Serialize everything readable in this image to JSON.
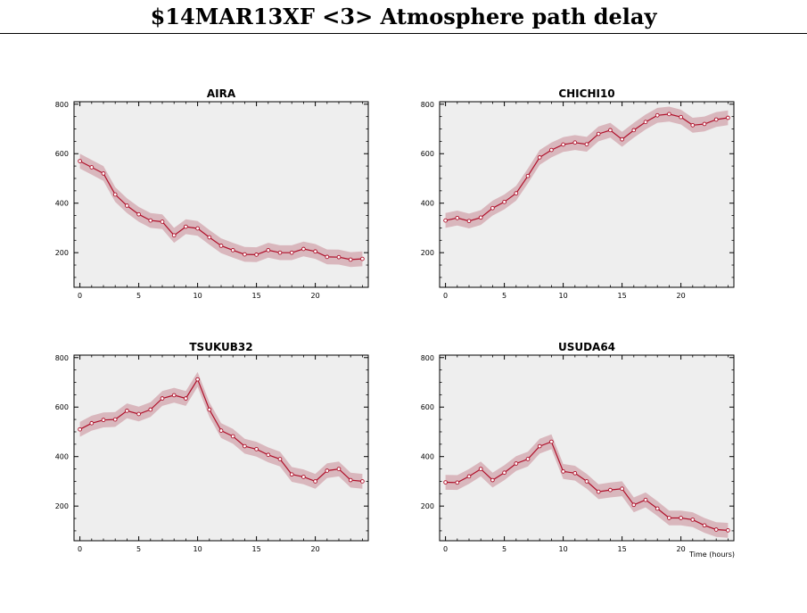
{
  "title": "$14MAR13XF <3>  Atmosphere path delay",
  "xlabel": "Time (hours)",
  "chart_data": [
    {
      "type": "line",
      "title": "AIRA",
      "x": [
        0,
        1,
        2,
        3,
        4,
        5,
        6,
        7,
        8,
        9,
        10,
        11,
        12,
        13,
        14,
        15,
        16,
        17,
        18,
        19,
        20,
        21,
        22,
        23,
        24
      ],
      "values": [
        570,
        545,
        520,
        435,
        390,
        355,
        330,
        325,
        270,
        305,
        298,
        262,
        228,
        210,
        193,
        192,
        210,
        200,
        200,
        215,
        205,
        183,
        182,
        172,
        175
      ],
      "xlim": [
        -0.5,
        24.5
      ],
      "ylim": [
        60,
        810
      ],
      "xticks": [
        0,
        5,
        10,
        15,
        20
      ],
      "yticks": [
        200,
        400,
        600,
        800
      ],
      "band": 30,
      "grid": false
    },
    {
      "type": "line",
      "title": "CHICHI10",
      "x": [
        0,
        1,
        2,
        3,
        4,
        5,
        6,
        7,
        8,
        9,
        10,
        11,
        12,
        13,
        14,
        15,
        16,
        17,
        18,
        19,
        20,
        21,
        22,
        23,
        24
      ],
      "values": [
        330,
        340,
        328,
        342,
        380,
        405,
        440,
        510,
        585,
        615,
        637,
        645,
        638,
        680,
        695,
        658,
        695,
        728,
        755,
        760,
        748,
        715,
        720,
        738,
        745
      ],
      "xlim": [
        -0.5,
        24.5
      ],
      "ylim": [
        60,
        810
      ],
      "xticks": [
        0,
        5,
        10,
        15,
        20
      ],
      "yticks": [
        200,
        400,
        600,
        800
      ],
      "band": 30,
      "grid": false
    },
    {
      "type": "line",
      "title": "TSUKUB32",
      "x": [
        0,
        1,
        2,
        3,
        4,
        5,
        6,
        7,
        8,
        9,
        10,
        11,
        12,
        13,
        14,
        15,
        16,
        17,
        18,
        19,
        20,
        21,
        22,
        23,
        24
      ],
      "values": [
        510,
        535,
        548,
        550,
        585,
        572,
        590,
        635,
        648,
        635,
        712,
        590,
        505,
        482,
        442,
        430,
        407,
        390,
        328,
        318,
        300,
        343,
        350,
        305,
        300
      ],
      "xlim": [
        -0.5,
        24.5
      ],
      "ylim": [
        60,
        810
      ],
      "xticks": [
        0,
        5,
        10,
        15,
        20
      ],
      "yticks": [
        200,
        400,
        600,
        800
      ],
      "band": 30,
      "grid": false
    },
    {
      "type": "line",
      "title": "USUDA64",
      "x": [
        0,
        1,
        2,
        3,
        4,
        5,
        6,
        7,
        8,
        9,
        10,
        11,
        12,
        13,
        14,
        15,
        16,
        17,
        18,
        19,
        20,
        21,
        22,
        23,
        24
      ],
      "values": [
        296,
        295,
        320,
        350,
        305,
        335,
        372,
        390,
        442,
        460,
        340,
        333,
        300,
        258,
        265,
        270,
        205,
        225,
        190,
        152,
        152,
        145,
        122,
        105,
        102
      ],
      "xlim": [
        -0.5,
        24.5
      ],
      "ylim": [
        60,
        810
      ],
      "xticks": [
        0,
        5,
        10,
        15,
        20
      ],
      "yticks": [
        200,
        400,
        600,
        800
      ],
      "band": 30,
      "grid": false
    }
  ],
  "colors": {
    "plot_bg": "#eeeeee",
    "band": "#d9b7bd",
    "line": "#b0102a",
    "axis": "#000000"
  }
}
